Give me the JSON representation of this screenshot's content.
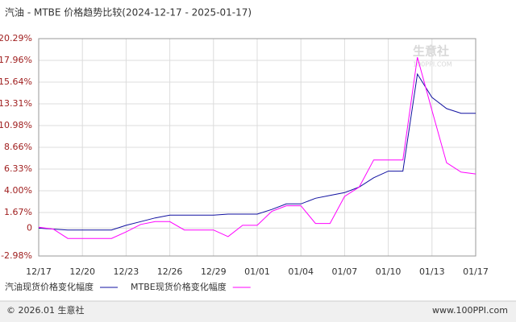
{
  "chart_data": {
    "type": "line",
    "title": "汽油 - MTBE 价格趋势比较(2024-12-17 - 2025-01-17)",
    "categories": [
      "12/17",
      null,
      null,
      "12/20",
      null,
      null,
      "12/23",
      null,
      null,
      "12/26",
      null,
      null,
      "12/29",
      null,
      null,
      "01/01",
      null,
      null,
      "01/04",
      null,
      null,
      "01/07",
      null,
      null,
      "01/10",
      null,
      null,
      "01/13",
      null,
      null,
      "01/17"
    ],
    "series": [
      {
        "name": "汽油现货价格变化幅度",
        "color": "#1010a0",
        "values": [
          0,
          -0.1,
          -0.2,
          -0.2,
          -0.2,
          -0.2,
          0.3,
          0.7,
          1.1,
          1.4,
          1.4,
          1.4,
          1.4,
          1.5,
          1.5,
          1.5,
          2.0,
          2.6,
          2.6,
          3.2,
          3.5,
          3.8,
          4.4,
          5.4,
          6.1,
          6.1,
          16.5,
          14.0,
          12.8,
          12.3,
          12.3
        ]
      },
      {
        "name": "MTBE现货价格变化幅度",
        "color": "#ff00ff",
        "values": [
          0.1,
          -0.1,
          -1.1,
          -1.1,
          -1.1,
          -1.1,
          -0.4,
          0.4,
          0.7,
          0.7,
          -0.2,
          -0.2,
          -0.2,
          -0.9,
          0.3,
          0.3,
          1.8,
          2.4,
          2.4,
          0.5,
          0.5,
          3.4,
          4.4,
          7.3,
          7.3,
          7.3,
          18.3,
          12.6,
          7.0,
          6.0,
          5.8
        ]
      }
    ],
    "ylim": [
      -2.98,
      20.29
    ],
    "yticks": [
      {
        "value": -2.98,
        "label": "-2.98%"
      },
      0,
      {
        "value": 1.67,
        "label": "1.67%"
      },
      {
        "value": 4.0,
        "label": "4.00%"
      },
      {
        "value": 6.33,
        "label": "6.33%"
      },
      {
        "value": 8.66,
        "label": "8.66%"
      },
      {
        "value": 10.98,
        "label": "10.98%"
      },
      {
        "value": 13.31,
        "label": "13.31%"
      },
      {
        "value": 15.64,
        "label": "15.64%"
      },
      {
        "value": 17.96,
        "label": "17.96%"
      },
      {
        "value": 20.29,
        "label": "20.29%"
      }
    ],
    "grid": true,
    "watermark": {
      "name": "生意社",
      "url": "100PPI.COM"
    },
    "footer": {
      "left": "© 2026.01 生意社",
      "right": "www.100PPI.com"
    }
  }
}
